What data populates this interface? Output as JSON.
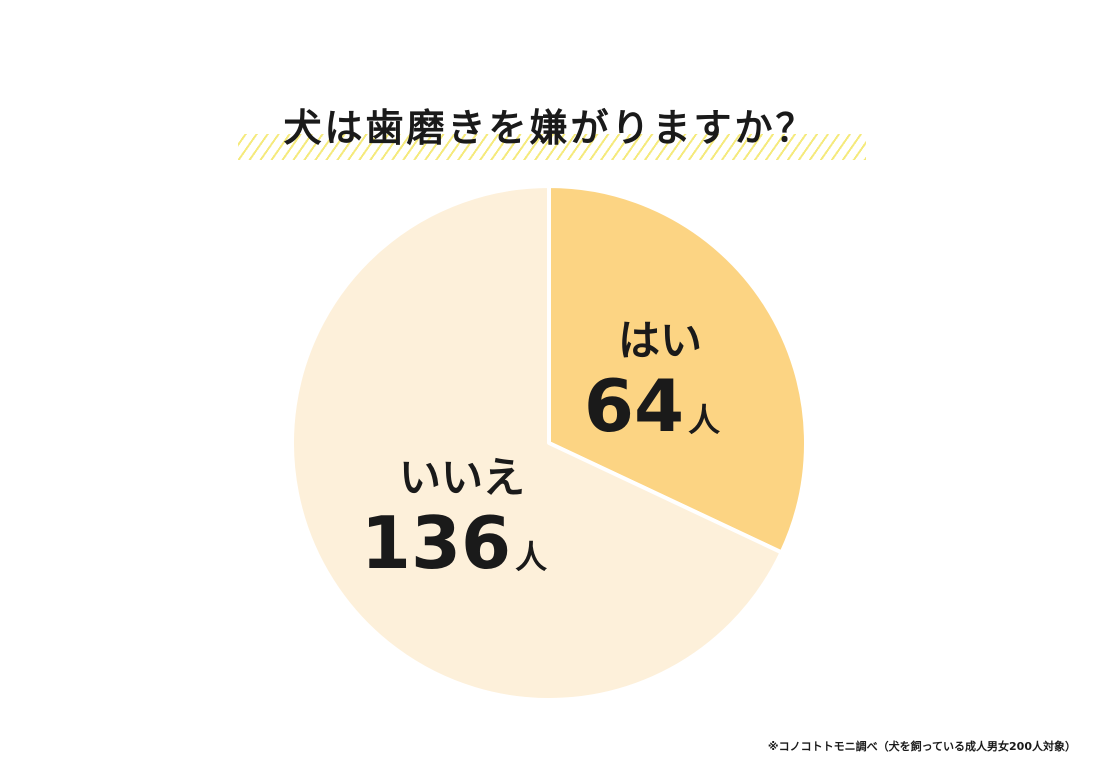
{
  "chart_data": {
    "type": "pie",
    "title": "犬は歯磨きを嫌がりますか？",
    "slices": [
      {
        "label": "はい",
        "value": 64,
        "display": "64",
        "unit": "人",
        "color": "#fcd483"
      },
      {
        "label": "いいえ",
        "value": 136,
        "display": "136",
        "unit": "人",
        "color": "#fdf0da"
      }
    ],
    "total": 200,
    "start_angle": "top (12 o'clock)",
    "direction": "clockwise",
    "slice_border_color": "#ffffff",
    "legend": "none"
  },
  "footnote": "※コノコトトモニ調べ（犬を飼っている成人男女200人対象）"
}
